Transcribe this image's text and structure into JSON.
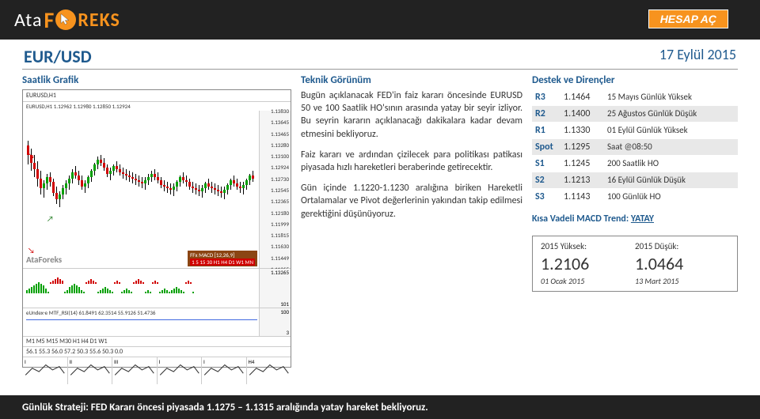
{
  "brand": {
    "ata": "Ata",
    "f": "F",
    "rest": "REKS"
  },
  "header": {
    "hesap_btn": "HESAP AÇ"
  },
  "title": {
    "pair": "EUR/USD",
    "date": "17 Eylül 2015"
  },
  "columns": {
    "c1": "Saatlik Grafik",
    "c2": "Teknik Görünüm",
    "c3": "Destek ve Dirençler"
  },
  "chart": {
    "symbol": "EURUSD,H1",
    "ohlc": "EURUSD,H1  1.12962 1.12980 1.12850 1.12924",
    "y_ticks": [
      "1.13830",
      "1.13645",
      "1.13465",
      "1.13280",
      "1.13100",
      "1.12924",
      "1.12730",
      "1.12545",
      "1.12365",
      "1.12180",
      "1.11999",
      "1.11815",
      "1.11630",
      "1.11449",
      "1.11265"
    ],
    "candles": [
      {
        "x": 1,
        "o": 152,
        "h": 158,
        "l": 128,
        "c": 140,
        "up": false
      },
      {
        "x": 5,
        "o": 140,
        "h": 148,
        "l": 120,
        "c": 130,
        "up": false
      },
      {
        "x": 9,
        "o": 130,
        "h": 140,
        "l": 112,
        "c": 122,
        "up": false
      },
      {
        "x": 13,
        "o": 122,
        "h": 132,
        "l": 100,
        "c": 110,
        "up": false
      },
      {
        "x": 17,
        "o": 110,
        "h": 120,
        "l": 90,
        "c": 98,
        "up": false
      },
      {
        "x": 21,
        "o": 98,
        "h": 108,
        "l": 86,
        "c": 104,
        "up": true
      },
      {
        "x": 25,
        "o": 104,
        "h": 116,
        "l": 96,
        "c": 112,
        "up": true
      },
      {
        "x": 29,
        "o": 112,
        "h": 118,
        "l": 100,
        "c": 106,
        "up": false
      },
      {
        "x": 33,
        "o": 106,
        "h": 110,
        "l": 88,
        "c": 92,
        "up": false
      },
      {
        "x": 37,
        "o": 92,
        "h": 100,
        "l": 78,
        "c": 84,
        "up": false
      },
      {
        "x": 41,
        "o": 84,
        "h": 94,
        "l": 74,
        "c": 90,
        "up": true
      },
      {
        "x": 45,
        "o": 90,
        "h": 102,
        "l": 84,
        "c": 98,
        "up": true
      },
      {
        "x": 49,
        "o": 98,
        "h": 108,
        "l": 90,
        "c": 104,
        "up": true
      },
      {
        "x": 53,
        "o": 104,
        "h": 114,
        "l": 96,
        "c": 110,
        "up": true
      },
      {
        "x": 57,
        "o": 110,
        "h": 122,
        "l": 104,
        "c": 118,
        "up": true
      },
      {
        "x": 61,
        "o": 118,
        "h": 126,
        "l": 110,
        "c": 114,
        "up": false
      },
      {
        "x": 65,
        "o": 114,
        "h": 120,
        "l": 102,
        "c": 108,
        "up": false
      },
      {
        "x": 69,
        "o": 108,
        "h": 114,
        "l": 96,
        "c": 100,
        "up": false
      },
      {
        "x": 73,
        "o": 100,
        "h": 108,
        "l": 92,
        "c": 104,
        "up": true
      },
      {
        "x": 77,
        "o": 104,
        "h": 114,
        "l": 98,
        "c": 112,
        "up": true
      },
      {
        "x": 81,
        "o": 112,
        "h": 122,
        "l": 106,
        "c": 120,
        "up": true
      },
      {
        "x": 85,
        "o": 120,
        "h": 130,
        "l": 114,
        "c": 128,
        "up": true
      },
      {
        "x": 89,
        "o": 128,
        "h": 138,
        "l": 122,
        "c": 134,
        "up": true
      },
      {
        "x": 93,
        "o": 134,
        "h": 140,
        "l": 126,
        "c": 130,
        "up": false
      },
      {
        "x": 97,
        "o": 130,
        "h": 136,
        "l": 120,
        "c": 124,
        "up": false
      },
      {
        "x": 101,
        "o": 124,
        "h": 128,
        "l": 112,
        "c": 116,
        "up": false
      },
      {
        "x": 105,
        "o": 116,
        "h": 124,
        "l": 108,
        "c": 120,
        "up": true
      },
      {
        "x": 109,
        "o": 120,
        "h": 128,
        "l": 114,
        "c": 126,
        "up": true
      },
      {
        "x": 113,
        "o": 126,
        "h": 132,
        "l": 118,
        "c": 122,
        "up": false
      },
      {
        "x": 117,
        "o": 122,
        "h": 128,
        "l": 114,
        "c": 118,
        "up": false
      },
      {
        "x": 121,
        "o": 118,
        "h": 124,
        "l": 110,
        "c": 116,
        "up": false
      },
      {
        "x": 125,
        "o": 116,
        "h": 122,
        "l": 108,
        "c": 114,
        "up": false
      },
      {
        "x": 129,
        "o": 114,
        "h": 120,
        "l": 106,
        "c": 112,
        "up": false
      },
      {
        "x": 133,
        "o": 112,
        "h": 118,
        "l": 104,
        "c": 110,
        "up": false
      },
      {
        "x": 137,
        "o": 110,
        "h": 116,
        "l": 102,
        "c": 108,
        "up": false
      },
      {
        "x": 141,
        "o": 108,
        "h": 114,
        "l": 100,
        "c": 106,
        "up": false
      },
      {
        "x": 145,
        "o": 106,
        "h": 112,
        "l": 98,
        "c": 104,
        "up": false
      },
      {
        "x": 149,
        "o": 104,
        "h": 112,
        "l": 96,
        "c": 108,
        "up": true
      },
      {
        "x": 153,
        "o": 108,
        "h": 116,
        "l": 102,
        "c": 112,
        "up": true
      },
      {
        "x": 157,
        "o": 112,
        "h": 120,
        "l": 106,
        "c": 116,
        "up": true
      },
      {
        "x": 161,
        "o": 116,
        "h": 122,
        "l": 108,
        "c": 112,
        "up": false
      },
      {
        "x": 165,
        "o": 112,
        "h": 118,
        "l": 104,
        "c": 108,
        "up": false
      },
      {
        "x": 169,
        "o": 108,
        "h": 112,
        "l": 98,
        "c": 102,
        "up": false
      },
      {
        "x": 173,
        "o": 102,
        "h": 108,
        "l": 94,
        "c": 100,
        "up": false
      },
      {
        "x": 177,
        "o": 100,
        "h": 106,
        "l": 92,
        "c": 98,
        "up": false
      },
      {
        "x": 181,
        "o": 98,
        "h": 104,
        "l": 90,
        "c": 96,
        "up": false
      },
      {
        "x": 185,
        "o": 96,
        "h": 104,
        "l": 88,
        "c": 100,
        "up": true
      },
      {
        "x": 189,
        "o": 100,
        "h": 108,
        "l": 94,
        "c": 106,
        "up": true
      },
      {
        "x": 193,
        "o": 106,
        "h": 114,
        "l": 100,
        "c": 112,
        "up": true
      },
      {
        "x": 197,
        "o": 112,
        "h": 118,
        "l": 104,
        "c": 108,
        "up": false
      },
      {
        "x": 201,
        "o": 108,
        "h": 114,
        "l": 100,
        "c": 106,
        "up": false
      },
      {
        "x": 205,
        "o": 106,
        "h": 110,
        "l": 96,
        "c": 100,
        "up": false
      },
      {
        "x": 209,
        "o": 100,
        "h": 106,
        "l": 92,
        "c": 98,
        "up": false
      },
      {
        "x": 213,
        "o": 98,
        "h": 104,
        "l": 90,
        "c": 96,
        "up": false
      },
      {
        "x": 217,
        "o": 96,
        "h": 102,
        "l": 88,
        "c": 94,
        "up": false
      },
      {
        "x": 221,
        "o": 94,
        "h": 102,
        "l": 86,
        "c": 98,
        "up": true
      },
      {
        "x": 225,
        "o": 98,
        "h": 106,
        "l": 92,
        "c": 104,
        "up": true
      },
      {
        "x": 229,
        "o": 104,
        "h": 110,
        "l": 96,
        "c": 100,
        "up": false
      },
      {
        "x": 233,
        "o": 100,
        "h": 106,
        "l": 92,
        "c": 98,
        "up": false
      },
      {
        "x": 237,
        "o": 98,
        "h": 104,
        "l": 90,
        "c": 96,
        "up": false
      },
      {
        "x": 241,
        "o": 96,
        "h": 102,
        "l": 88,
        "c": 94,
        "up": false
      },
      {
        "x": 245,
        "o": 94,
        "h": 100,
        "l": 86,
        "c": 92,
        "up": false
      },
      {
        "x": 249,
        "o": 92,
        "h": 100,
        "l": 84,
        "c": 96,
        "up": true
      },
      {
        "x": 253,
        "o": 96,
        "h": 104,
        "l": 90,
        "c": 102,
        "up": true
      },
      {
        "x": 257,
        "o": 102,
        "h": 110,
        "l": 96,
        "c": 108,
        "up": true
      },
      {
        "x": 261,
        "o": 108,
        "h": 114,
        "l": 100,
        "c": 104,
        "up": false
      },
      {
        "x": 265,
        "o": 104,
        "h": 110,
        "l": 96,
        "c": 100,
        "up": false
      },
      {
        "x": 269,
        "o": 100,
        "h": 106,
        "l": 92,
        "c": 98,
        "up": false
      },
      {
        "x": 273,
        "o": 98,
        "h": 106,
        "l": 90,
        "c": 102,
        "up": true
      },
      {
        "x": 277,
        "o": 102,
        "h": 110,
        "l": 96,
        "c": 108,
        "up": true
      },
      {
        "x": 281,
        "o": 108,
        "h": 116,
        "l": 102,
        "c": 114,
        "up": true
      },
      {
        "x": 285,
        "o": 114,
        "h": 120,
        "l": 106,
        "c": 110,
        "up": false
      }
    ],
    "ffx_label": "FFx MACD [12,26,9]",
    "ffx_tfs": "1   5  15  30  H1  H4  D1  W1  MN",
    "macd_y": [
      "1.13265",
      "101"
    ],
    "macd_bars": [
      2,
      3,
      4,
      5,
      6,
      7,
      6,
      5,
      3,
      1,
      -1,
      -2,
      -3,
      -4,
      -3,
      -2,
      1,
      2,
      4,
      5,
      6,
      5,
      4,
      2,
      1,
      -1,
      -2,
      -3,
      -2,
      -1,
      1,
      2,
      3,
      4,
      3,
      2,
      1,
      -1,
      -2,
      -1,
      1,
      2,
      3,
      2,
      1,
      -1,
      -2,
      -3,
      -2,
      -1,
      1,
      2,
      1,
      -1,
      -2,
      -1,
      1,
      2,
      3,
      2,
      1,
      2,
      3,
      4,
      3,
      2,
      1,
      -1,
      -2,
      -1,
      1
    ],
    "rsi_label": "eUndex-e MTF_RSI(14) 61.8491 62.3514 55.9126 51.4736",
    "rsi_y": [
      "100",
      "3"
    ],
    "tf_labels": "M1   M5   M15   M30   H1   H4   D1   W1",
    "tf_vals": "56.1   55.3   56.0   57.2   50.3   55.6   50.3   0.0",
    "x_times": [
      "9 Sep 08:00",
      "9 Sep 23:00",
      "10 Sep 15:00",
      "11 Sep 07:00",
      "13 Sep 23:00",
      "14 Sep 23:00",
      "15 Sep 17:00",
      "16 Sep 09:00"
    ],
    "mini_labels": [
      "I",
      "II",
      "III",
      "I",
      "I",
      "H4"
    ],
    "watermark": "AtaForeks"
  },
  "analysis": {
    "p1": "Bugün açıklanacak FED'in faiz kararı öncesinde EURUSD 50 ve 100 Saatlik HO'sının arasında yatay bir seyir izliyor. Bu seyrin kararın açıklanacağı dakikalara kadar devam etmesini bekliyoruz.",
    "p2": "Faiz kararı ve ardından çizilecek para politikası patikası piyasada hızlı hareketleri beraberinde getirecektir.",
    "p3": "Gün içinde 1.1220-1.1230 aralığına biriken Hareketli Ortalamalar ve Pivot değerlerinin yakından takip edilmesi gerektiğini düşünüyoruz."
  },
  "sr": {
    "rows": [
      {
        "l": "R3",
        "v": "1.1464",
        "d": "15 Mayıs Günlük Yüksek",
        "alt": false
      },
      {
        "l": "R2",
        "v": "1.1400",
        "d": "25 Ağustos Günlük Düşük",
        "alt": true
      },
      {
        "l": "R1",
        "v": "1.1330",
        "d": "01 Eylül Günlük Yüksek",
        "alt": false
      },
      {
        "l": "Spot",
        "v": "1.1295",
        "d": "Saat @08:50",
        "alt": true
      },
      {
        "l": "S1",
        "v": "1.1245",
        "d": "200 Saatlik HO",
        "alt": false
      },
      {
        "l": "S2",
        "v": "1.1213",
        "d": "16 Eylül Günlük Düşük",
        "alt": true
      },
      {
        "l": "S3",
        "v": "1.1143",
        "d": "100 Günlük HO",
        "alt": false
      }
    ],
    "macd_label": "Kısa Vadeli MACD Trend:  ",
    "macd_val": "YATAY"
  },
  "year": {
    "high_label": "2015 Yüksek:",
    "high_val": "1.2106",
    "high_date": "01 Ocak 2015",
    "low_label": "2015 Düşük:",
    "low_val": "1.0464",
    "low_date": "13 Mart 2015"
  },
  "footer": "Günlük Strateji: FED Kararı öncesi piyasada 1.1275 – 1.1315 aralığında yatay hareket bekliyoruz.",
  "colors": {
    "up": "#00a000",
    "down": "#d00000",
    "brand_orange": "#f7931e",
    "brand_blue": "#1f5a8e"
  }
}
